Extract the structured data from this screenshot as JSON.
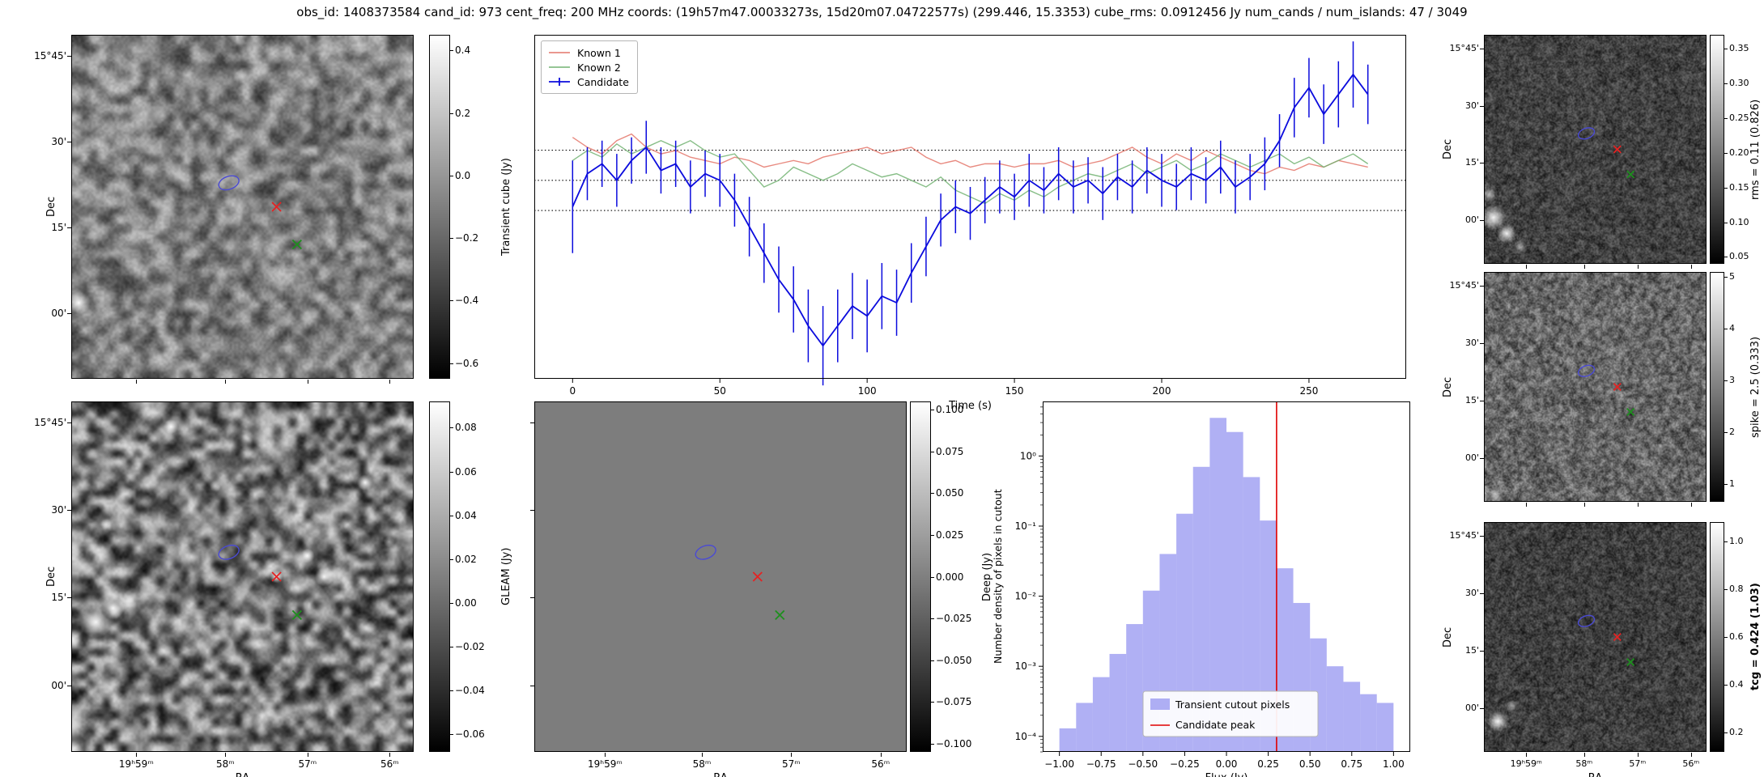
{
  "figure": {
    "title": "obs_id: 1408373584 cand_id: 973 cent_freq: 200 MHz coords: (19h57m47.00033273s, 15d20m07.04722577s) (299.446, 15.3353) cube_rms: 0.0912456 Jy num_cands / num_islands: 47 / 3049"
  },
  "axes": {
    "ra_label": "RA",
    "dec_label": "Dec",
    "ra_tick_labels": [
      "19ʰ59ᵐ",
      "58ᵐ",
      "57ᵐ",
      "56ᵐ"
    ],
    "dec_tick_labels": [
      "15°45'",
      "30'",
      "15'",
      "00'"
    ]
  },
  "markers": {
    "contour": {
      "x": 0.46,
      "y": 0.43,
      "color": "#4a4ad4"
    },
    "known1_cross": {
      "x": 0.6,
      "y": 0.5,
      "color": "#e52222"
    },
    "known2_cross": {
      "x": 0.66,
      "y": 0.61,
      "color": "#1e8f1e"
    }
  },
  "image_panels": [
    {
      "id": "transient",
      "cbar": {
        "label": "Transient cube (Jy)",
        "vmin": -0.65,
        "vmax": 0.45,
        "ticks": [
          0.4,
          0.2,
          0.0,
          -0.2,
          -0.4,
          -0.6
        ],
        "decimals": 1,
        "bold": false
      }
    },
    {
      "id": "gleam",
      "cbar": {
        "label": "GLEAM (Jy)",
        "vmin": -0.068,
        "vmax": 0.092,
        "ticks": [
          0.08,
          0.06,
          0.04,
          0.02,
          0.0,
          -0.02,
          -0.04,
          -0.06
        ],
        "decimals": 2,
        "bold": false
      }
    },
    {
      "id": "deep",
      "cbar": {
        "label": "Deep (Jy)",
        "vmin": -0.105,
        "vmax": 0.105,
        "ticks": [
          0.1,
          0.075,
          0.05,
          0.025,
          0.0,
          -0.025,
          -0.05,
          -0.075,
          -0.1
        ],
        "decimals": 3,
        "bold": false
      }
    },
    {
      "id": "rms",
      "cbar": {
        "label": "rms = 0.11 (0.826)",
        "vmin": 0.04,
        "vmax": 0.37,
        "ticks": [
          0.35,
          0.3,
          0.25,
          0.2,
          0.15,
          0.1,
          0.05
        ],
        "decimals": 2,
        "bold": false
      }
    },
    {
      "id": "spike",
      "cbar": {
        "label": "spike = 2.5 (0.333)",
        "vmin": 0.66,
        "vmax": 5.1,
        "ticks": [
          5,
          4,
          3,
          2,
          1
        ],
        "decimals": 0,
        "bold": false
      }
    },
    {
      "id": "tcg",
      "cbar": {
        "label": "tcg = 0.424 (1.03)",
        "vmin": 0.12,
        "vmax": 1.08,
        "ticks": [
          1.0,
          0.8,
          0.6,
          0.4,
          0.2
        ],
        "decimals": 1,
        "bold": true
      }
    }
  ],
  "chart_data": [
    {
      "type": "line",
      "title": "",
      "xlabel": "Time (s)",
      "ylabel": "",
      "xlim": [
        -13,
        283
      ],
      "ylim": [
        -0.6,
        0.44
      ],
      "x_ticks": [
        0,
        50,
        100,
        150,
        200,
        250
      ],
      "hlines": [
        0.0912,
        0.0,
        -0.0912
      ],
      "legend_pos": "upper left",
      "x": [
        0,
        5,
        10,
        15,
        20,
        25,
        30,
        35,
        40,
        45,
        50,
        55,
        60,
        65,
        70,
        75,
        80,
        85,
        90,
        95,
        100,
        105,
        110,
        115,
        120,
        125,
        130,
        135,
        140,
        145,
        150,
        155,
        160,
        165,
        170,
        175,
        180,
        185,
        190,
        195,
        200,
        205,
        210,
        215,
        220,
        225,
        230,
        235,
        240,
        245,
        250,
        255,
        260,
        265,
        270
      ],
      "series": [
        {
          "name": "Known 1",
          "color": "#e4756a",
          "y": [
            0.13,
            0.1,
            0.08,
            0.12,
            0.14,
            0.1,
            0.08,
            0.09,
            0.07,
            0.06,
            0.05,
            0.07,
            0.06,
            0.04,
            0.05,
            0.06,
            0.05,
            0.07,
            0.08,
            0.09,
            0.1,
            0.08,
            0.09,
            0.1,
            0.07,
            0.05,
            0.06,
            0.04,
            0.05,
            0.05,
            0.04,
            0.05,
            0.05,
            0.06,
            0.04,
            0.05,
            0.06,
            0.08,
            0.1,
            0.07,
            0.05,
            0.08,
            0.06,
            0.09,
            0.07,
            0.05,
            0.03,
            0.02,
            0.04,
            0.03,
            0.05,
            0.04,
            0.06,
            0.05,
            0.04
          ]
        },
        {
          "name": "Known 2",
          "color": "#72b372",
          "y": [
            0.06,
            0.09,
            0.07,
            0.11,
            0.08,
            0.1,
            0.12,
            0.1,
            0.12,
            0.09,
            0.07,
            0.08,
            0.03,
            -0.02,
            0.0,
            0.04,
            0.02,
            0.0,
            0.02,
            0.05,
            0.03,
            0.01,
            0.02,
            0.0,
            -0.02,
            0.01,
            -0.03,
            -0.05,
            -0.07,
            -0.04,
            -0.06,
            -0.03,
            -0.05,
            -0.02,
            0.0,
            0.02,
            0.01,
            0.03,
            0.05,
            0.02,
            0.04,
            0.06,
            0.03,
            0.05,
            0.08,
            0.06,
            0.04,
            0.06,
            0.08,
            0.05,
            0.07,
            0.04,
            0.06,
            0.08,
            0.05
          ]
        },
        {
          "name": "Candidate",
          "color": "#0b0bdd",
          "y": [
            -0.08,
            0.02,
            0.05,
            0.0,
            0.06,
            0.1,
            0.03,
            0.05,
            -0.02,
            0.02,
            0.0,
            -0.06,
            -0.14,
            -0.22,
            -0.3,
            -0.36,
            -0.44,
            -0.5,
            -0.44,
            -0.38,
            -0.41,
            -0.35,
            -0.37,
            -0.28,
            -0.2,
            -0.12,
            -0.08,
            -0.1,
            -0.06,
            -0.02,
            -0.05,
            0.0,
            -0.03,
            0.02,
            -0.02,
            0.0,
            -0.04,
            0.01,
            -0.02,
            0.03,
            0.0,
            -0.02,
            0.02,
            0.0,
            0.04,
            -0.02,
            0.01,
            0.05,
            0.12,
            0.22,
            0.28,
            0.2,
            0.26,
            0.32,
            0.26
          ],
          "yerr": [
            0.14,
            0.08,
            0.07,
            0.08,
            0.07,
            0.08,
            0.07,
            0.07,
            0.08,
            0.07,
            0.08,
            0.08,
            0.09,
            0.09,
            0.1,
            0.1,
            0.11,
            0.12,
            0.11,
            0.1,
            0.11,
            0.1,
            0.1,
            0.09,
            0.09,
            0.08,
            0.08,
            0.08,
            0.07,
            0.08,
            0.07,
            0.08,
            0.07,
            0.08,
            0.08,
            0.07,
            0.08,
            0.07,
            0.08,
            0.07,
            0.08,
            0.07,
            0.08,
            0.07,
            0.08,
            0.08,
            0.07,
            0.08,
            0.08,
            0.09,
            0.09,
            0.09,
            0.1,
            0.1,
            0.09
          ]
        }
      ]
    },
    {
      "type": "bar",
      "title": "",
      "xlabel": "Flux (Jy)",
      "ylabel": "Number density of pixels in cutout",
      "yscale": "log",
      "xlim": [
        -1.1,
        1.1
      ],
      "ylim": [
        6e-05,
        6
      ],
      "x_ticks": [
        -1.0,
        -0.75,
        -0.5,
        -0.25,
        0.0,
        0.25,
        0.5,
        0.75,
        1.0
      ],
      "bin_start": -1.0,
      "bin_width": 0.1,
      "densities": [
        0.00013,
        0.0003,
        0.0007,
        0.0015,
        0.004,
        0.012,
        0.04,
        0.15,
        0.7,
        3.5,
        2.2,
        0.5,
        0.12,
        0.025,
        0.008,
        0.0025,
        0.001,
        0.0006,
        0.0004,
        0.0003
      ],
      "bar_color": "#8585ee",
      "vline": {
        "x": 0.3,
        "color": "#e00000"
      },
      "legend": [
        "Transient cutout pixels",
        "Candidate peak"
      ]
    }
  ]
}
